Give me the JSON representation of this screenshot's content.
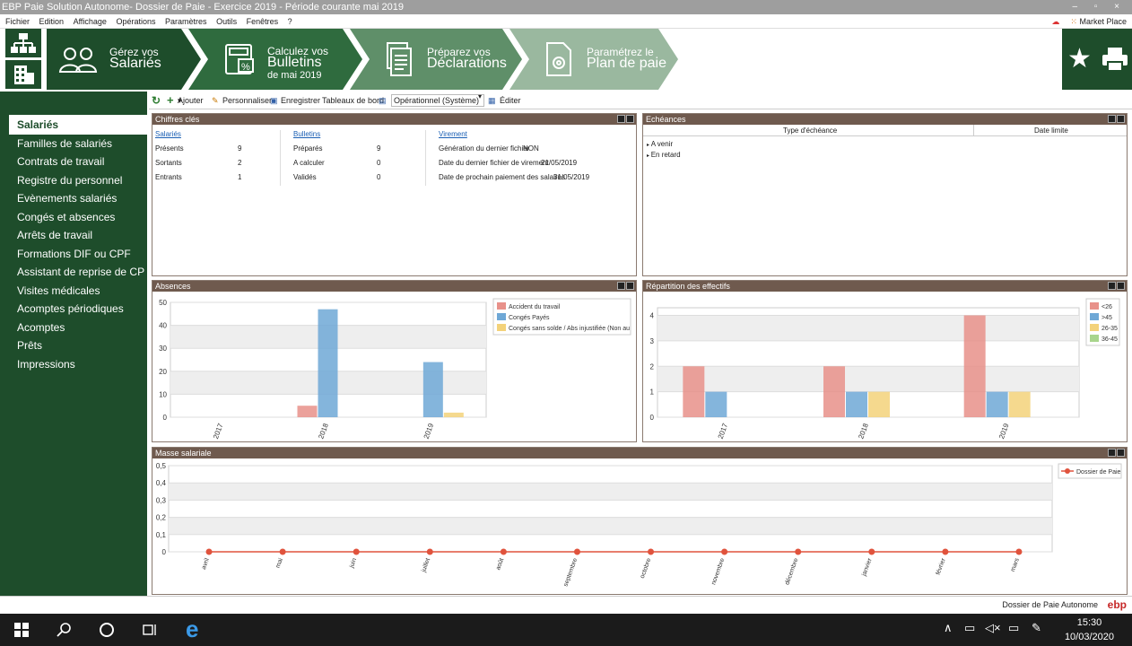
{
  "window": {
    "title": "EBP Paie Solution Autonome- Dossier de Paie - Exercice 2019 - Période courante mai 2019",
    "controls": "– ▫ ×"
  },
  "menu": {
    "items": [
      "Fichier",
      "Edition",
      "Affichage",
      "Opérations",
      "Paramètres",
      "Outils",
      "Fenêtres",
      "?"
    ],
    "market": "Market Place"
  },
  "ribbon": {
    "steps": [
      {
        "line1": "Gérez vos",
        "line2": "Salariés",
        "line3": ""
      },
      {
        "line1": "Calculez vos",
        "line2": "Bulletins",
        "line3": "de mai 2019"
      },
      {
        "line1": "Préparez vos",
        "line2": "Déclarations",
        "line3": ""
      },
      {
        "line1": "Paramétrez le",
        "line2": "Plan de paie",
        "line3": ""
      }
    ],
    "colors": [
      "#1e4d2b",
      "#2f6b3e",
      "#5f8f69",
      "#9ab89f"
    ]
  },
  "sidebar": {
    "items": [
      "Salariés",
      "Familles de salariés",
      "Contrats de travail",
      "Registre du personnel",
      "Evènements salariés",
      "Congés et absences",
      "Arrêts de travail",
      "Formations DIF ou CPF",
      "Assistant de reprise de CP",
      "Visites médicales",
      "Acomptes périodiques",
      "Acomptes",
      "Prêts",
      "Impressions"
    ],
    "selected": 0
  },
  "toolbar": {
    "ajouter": "Ajouter",
    "personnaliser": "Personnaliser",
    "enregistrer": "Enregistrer",
    "tableaux": "Tableaux de bord",
    "dashboard": "Opérationnel (Système)",
    "editer": "Éditer"
  },
  "chiffres": {
    "title": "Chiffres clés",
    "salaries": {
      "header": "Salariés",
      "rows": [
        [
          "Présents",
          "9"
        ],
        [
          "Sortants",
          "2"
        ],
        [
          "Entrants",
          "1"
        ]
      ]
    },
    "bulletins": {
      "header": "Bulletins",
      "rows": [
        [
          "Préparés",
          "9"
        ],
        [
          "A calculer",
          "0"
        ],
        [
          "Validés",
          "0"
        ]
      ]
    },
    "virement": {
      "header": "Virement",
      "rows": [
        [
          "Génération du dernier fichier",
          "NON"
        ],
        [
          "Date du dernier fichier de virement",
          "21/05/2019"
        ],
        [
          "Date de prochain paiement des salaires",
          "31/05/2019"
        ]
      ]
    }
  },
  "echeances": {
    "title": "Echéances",
    "col1": "Type d'échéance",
    "col2": "Date limite",
    "rows": [
      "A venir",
      "En retard"
    ]
  },
  "absences": {
    "title": "Absences",
    "chart_data": {
      "type": "bar",
      "categories": [
        "2017",
        "2018",
        "2019"
      ],
      "series": [
        {
          "name": "Accident du travail",
          "values": [
            0,
            5,
            0
          ],
          "color": "#e8918a"
        },
        {
          "name": "Congés Payés",
          "values": [
            0,
            47,
            24
          ],
          "color": "#6fa8d6"
        },
        {
          "name": "Congés sans solde / Abs injustifiée (Non au",
          "values": [
            0,
            0,
            2
          ],
          "color": "#f3d27a"
        }
      ],
      "ylim": [
        0,
        50
      ],
      "yticks": [
        "0",
        "10",
        "20",
        "30",
        "40",
        "50"
      ],
      "grid": true,
      "legend": "right"
    }
  },
  "repartition": {
    "title": "Répartition des effectifs",
    "chart_data": {
      "type": "bar",
      "categories": [
        "2017",
        "2018",
        "2019"
      ],
      "series": [
        {
          "name": "<26",
          "values": [
            2,
            2,
            4
          ],
          "color": "#e8918a"
        },
        {
          "name": ">45",
          "values": [
            1,
            1,
            1
          ],
          "color": "#6fa8d6"
        },
        {
          "name": "26-35",
          "values": [
            0,
            1,
            1
          ],
          "color": "#f3d27a"
        },
        {
          "name": "36-45",
          "values": [
            0,
            0,
            0
          ],
          "color": "#a8d58c"
        }
      ],
      "ylim": [
        0,
        4.3
      ],
      "yticks": [
        "0",
        "1",
        "2",
        "3",
        "4"
      ],
      "grid": true,
      "legend": "right"
    }
  },
  "masse": {
    "title": "Masse salariale",
    "chart_data": {
      "type": "line",
      "categories": [
        "avril",
        "mai",
        "juin",
        "juillet",
        "août",
        "septembre",
        "octobre",
        "novembre",
        "décembre",
        "janvier",
        "février",
        "mars"
      ],
      "series": [
        {
          "name": "Dossier de Paie",
          "values": [
            0,
            0,
            0,
            0,
            0,
            0,
            0,
            0,
            0,
            0,
            0,
            0
          ],
          "color": "#e0533d"
        }
      ],
      "ylim": [
        0,
        0.5
      ],
      "yticks": [
        "0",
        "0,1",
        "0,2",
        "0,3",
        "0,4",
        "0,5"
      ],
      "grid": true,
      "legend": "top-right"
    }
  },
  "status": {
    "text": "Dossier de Paie Autonome",
    "logo": "ebp"
  },
  "taskbar": {
    "time": "15:30",
    "date": "10/03/2020"
  }
}
